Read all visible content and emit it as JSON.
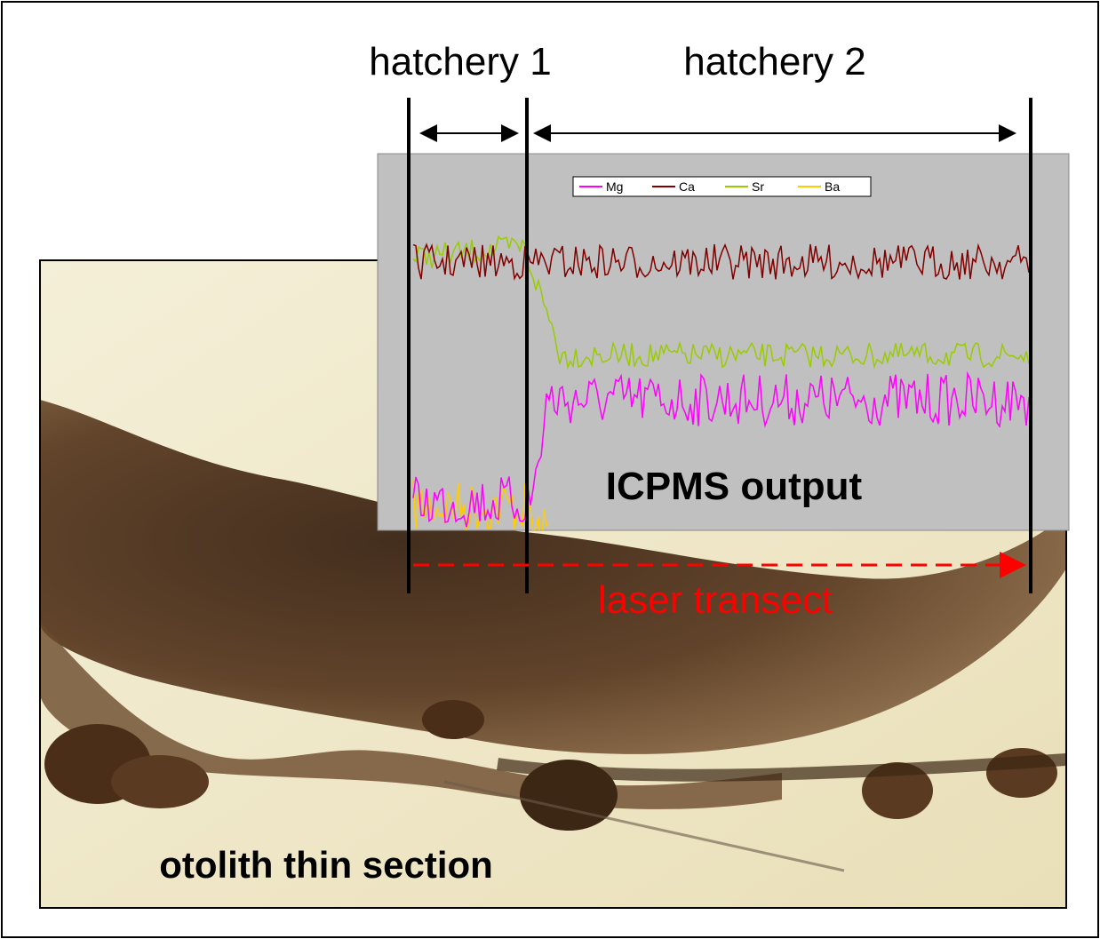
{
  "labels": {
    "hatchery_1": "hatchery 1",
    "hatchery_2": "hatchery 2",
    "chart_label": "ICPMS output",
    "transect": "laser transect",
    "section": "otolith thin section"
  },
  "legend": [
    "Mg",
    "Ca",
    "Sr",
    "Ba"
  ]
}
